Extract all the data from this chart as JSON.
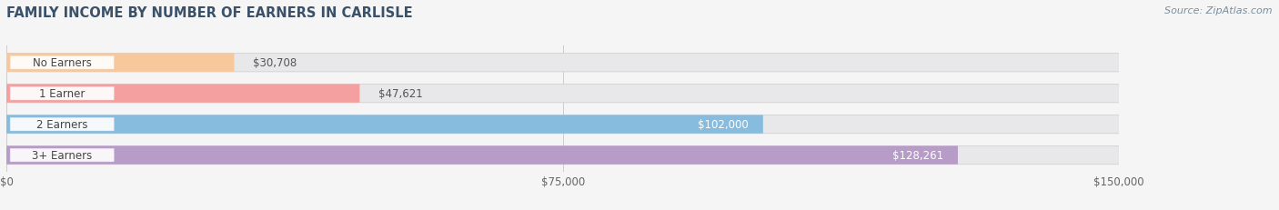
{
  "title": "FAMILY INCOME BY NUMBER OF EARNERS IN CARLISLE",
  "source": "Source: ZipAtlas.com",
  "categories": [
    "No Earners",
    "1 Earner",
    "2 Earners",
    "3+ Earners"
  ],
  "values": [
    30708,
    47621,
    102000,
    128261
  ],
  "labels": [
    "$30,708",
    "$47,621",
    "$102,000",
    "$128,261"
  ],
  "bar_colors": [
    "#f7c89b",
    "#f4a0a0",
    "#87bcde",
    "#b89cc8"
  ],
  "bar_bg_color": "#e8e8ea",
  "xlim": [
    0,
    150000
  ],
  "xticklabels": [
    "$0",
    "$75,000",
    "$150,000"
  ],
  "xtick_vals": [
    0,
    75000,
    150000
  ],
  "title_color": "#3a5169",
  "title_fontsize": 10.5,
  "label_fontsize": 8.5,
  "source_fontsize": 8,
  "source_color": "#7a8f9e",
  "bar_height": 0.6,
  "fig_bg": "#f5f5f5",
  "value_label_color_inside": "#ffffff",
  "value_label_color_outside": "#555555"
}
